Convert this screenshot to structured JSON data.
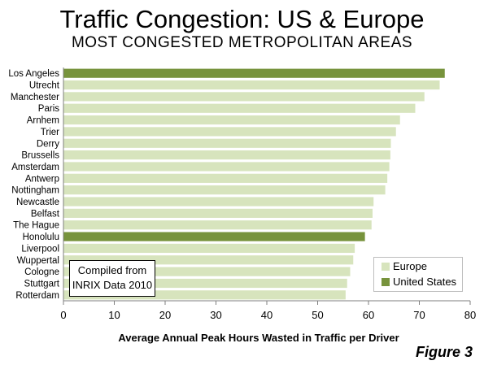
{
  "title": "Traffic Congestion: US & Europe",
  "subtitle": "MOST CONGESTED METROPOLITAN AREAS",
  "figure_label": "Figure 3",
  "note": {
    "line1": "Compiled from",
    "line2": "INRIX Data 2010"
  },
  "colors": {
    "europe": "#d7e4bd",
    "united_states": "#77933c",
    "grid": "#d9d9d9",
    "axis": "#7f7f7f"
  },
  "chart_data": {
    "type": "bar",
    "orientation": "horizontal",
    "xlabel": "Average Annual Peak Hours Wasted in Traffic per Driver",
    "ylabel": "",
    "xlim": [
      0,
      80
    ],
    "xticks": [
      0,
      10,
      20,
      30,
      40,
      50,
      60,
      70,
      80
    ],
    "grid": false,
    "legend_position": "bottom-right",
    "legend": [
      {
        "name": "Europe",
        "color_key": "europe"
      },
      {
        "name": "United States",
        "color_key": "united_states"
      }
    ],
    "categories": [
      "Los Angeles",
      "Utrecht",
      "Manchester",
      "Paris",
      "Arnhem",
      "Trier",
      "Derry",
      "Brussells",
      "Amsterdam",
      "Antwerp",
      "Nottingham",
      "Newcastle",
      "Belfast",
      "The Hague",
      "Honolulu",
      "Liverpool",
      "Wuppertal",
      "Cologne",
      "Stuttgart",
      "Rotterdam"
    ],
    "values": [
      75,
      74,
      71,
      69.2,
      66.2,
      65.4,
      64.4,
      64.3,
      64.1,
      63.7,
      63.3,
      61,
      60.8,
      60.6,
      59.3,
      57.3,
      57,
      56.4,
      55.8,
      55.5
    ],
    "groups": [
      "United States",
      "Europe",
      "Europe",
      "Europe",
      "Europe",
      "Europe",
      "Europe",
      "Europe",
      "Europe",
      "Europe",
      "Europe",
      "Europe",
      "Europe",
      "Europe",
      "United States",
      "Europe",
      "Europe",
      "Europe",
      "Europe",
      "Europe"
    ]
  }
}
